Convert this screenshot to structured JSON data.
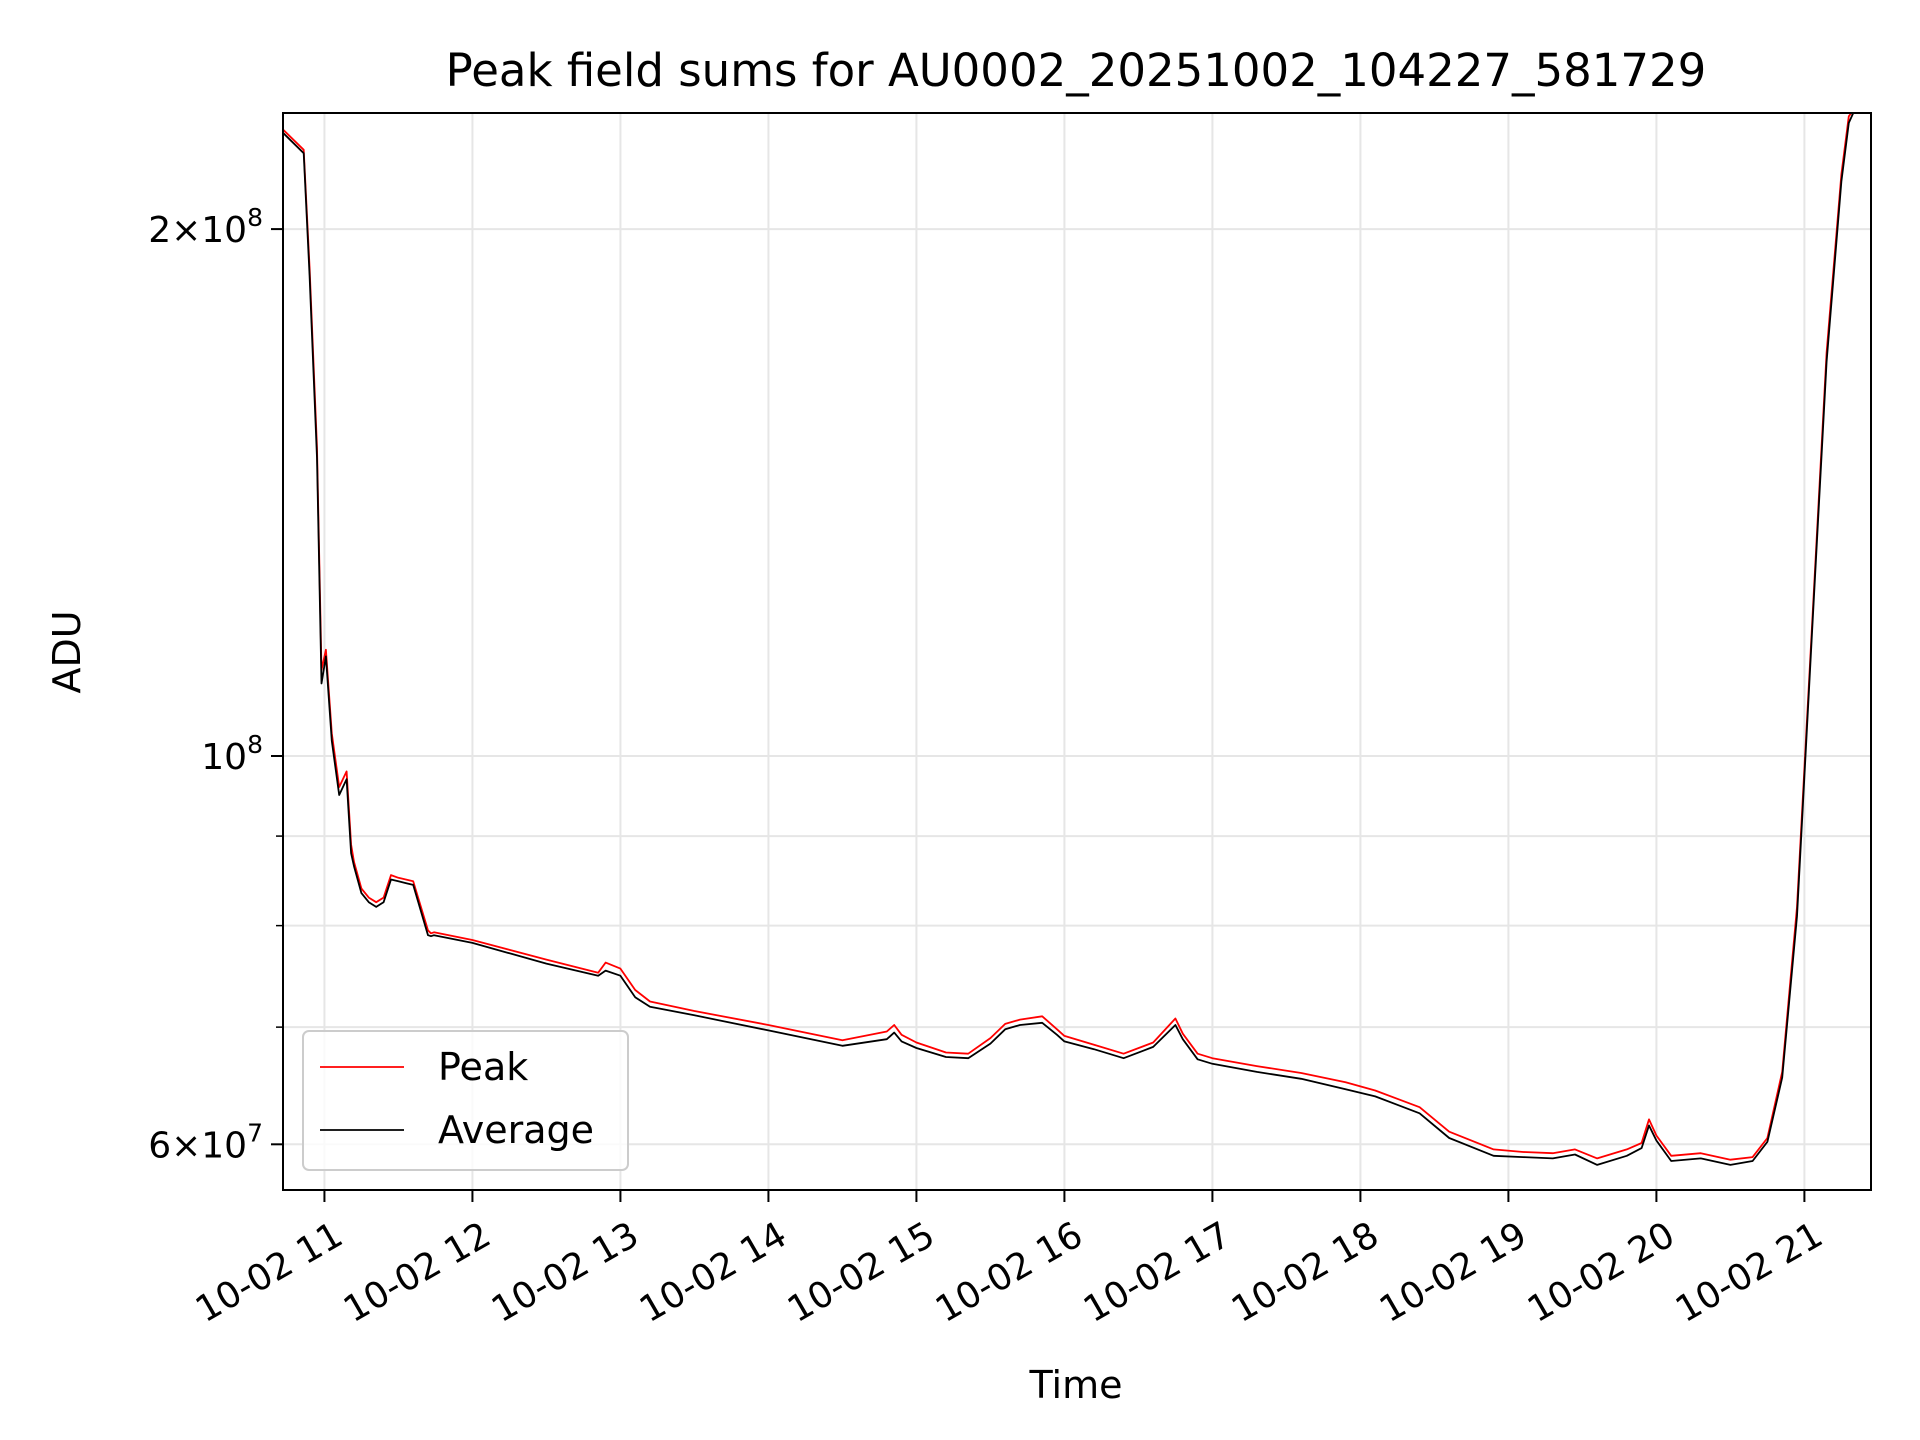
{
  "chart_data": {
    "type": "line",
    "title": "Peak field sums for AU0002_20251002_104227_581729",
    "xlabel": "Time",
    "ylabel": "ADU",
    "y_scale": "log",
    "ylim": [
      56500000,
      233000000
    ],
    "xlim_hours": [
      10.72,
      21.45
    ],
    "grid": true,
    "legend_position": "lower-left",
    "x_ticks": [
      {
        "value": 11,
        "label": "10-02 11"
      },
      {
        "value": 12,
        "label": "10-02 12"
      },
      {
        "value": 13,
        "label": "10-02 13"
      },
      {
        "value": 14,
        "label": "10-02 14"
      },
      {
        "value": 15,
        "label": "10-02 15"
      },
      {
        "value": 16,
        "label": "10-02 16"
      },
      {
        "value": 17,
        "label": "10-02 17"
      },
      {
        "value": 18,
        "label": "10-02 18"
      },
      {
        "value": 19,
        "label": "10-02 19"
      },
      {
        "value": 20,
        "label": "10-02 20"
      },
      {
        "value": 21,
        "label": "10-02 21"
      }
    ],
    "y_major_ticks": [
      {
        "value": 60000000,
        "base": "6×10",
        "exp": "7"
      },
      {
        "value": 100000000,
        "base": "10",
        "exp": "8"
      },
      {
        "value": 200000000,
        "base": "2×10",
        "exp": "8"
      }
    ],
    "y_minor_ticks": [
      70000000,
      80000000,
      90000000
    ],
    "series": [
      {
        "name": "Peak",
        "color": "#ff0000",
        "x": [
          10.72,
          10.86,
          10.9,
          10.95,
          10.98,
          11.01,
          11.05,
          11.1,
          11.15,
          11.18,
          11.2,
          11.25,
          11.3,
          11.35,
          11.4,
          11.45,
          11.5,
          11.55,
          11.6,
          11.7,
          11.72,
          11.74,
          12.0,
          12.5,
          12.85,
          12.9,
          13.0,
          13.1,
          13.2,
          13.5,
          14.0,
          14.5,
          14.8,
          14.85,
          14.9,
          15.0,
          15.2,
          15.35,
          15.5,
          15.6,
          15.7,
          15.85,
          15.95,
          16.0,
          16.2,
          16.4,
          16.6,
          16.75,
          16.8,
          16.9,
          17.0,
          17.3,
          17.6,
          17.9,
          18.1,
          18.4,
          18.6,
          18.9,
          19.1,
          19.3,
          19.45,
          19.6,
          19.8,
          19.9,
          19.95,
          20.0,
          20.1,
          20.3,
          20.5,
          20.65,
          20.75,
          20.85,
          20.95,
          21.05,
          21.15,
          21.25,
          21.3,
          21.35
        ],
        "values": [
          228000000,
          222000000,
          190000000,
          150000000,
          112000000,
          115000000,
          103000000,
          96000000,
          98000000,
          89000000,
          87000000,
          84000000,
          83000000,
          82500000,
          83000000,
          85500000,
          85200000,
          85000000,
          84800000,
          79500000,
          79200000,
          79300000,
          78500000,
          76500000,
          75200000,
          76200000,
          75600000,
          73500000,
          72400000,
          71500000,
          70200000,
          68800000,
          69600000,
          70200000,
          69300000,
          68600000,
          67700000,
          67600000,
          69000000,
          70300000,
          70700000,
          71000000,
          69800000,
          69200000,
          68400000,
          67600000,
          68600000,
          70800000,
          69400000,
          67600000,
          67200000,
          66500000,
          65900000,
          65100000,
          64400000,
          63000000,
          61000000,
          59600000,
          59400000,
          59300000,
          59600000,
          58900000,
          59600000,
          60100000,
          62000000,
          60700000,
          59100000,
          59300000,
          58800000,
          59000000,
          60500000,
          66000000,
          82000000,
          118000000,
          170000000,
          215000000,
          232000000,
          235000000
        ]
      },
      {
        "name": "Average",
        "color": "#000000",
        "x": [
          10.72,
          10.86,
          10.9,
          10.95,
          10.98,
          11.01,
          11.05,
          11.1,
          11.15,
          11.18,
          11.2,
          11.25,
          11.3,
          11.35,
          11.4,
          11.45,
          11.5,
          11.55,
          11.6,
          11.7,
          11.72,
          11.74,
          12.0,
          12.5,
          12.85,
          12.9,
          13.0,
          13.1,
          13.2,
          13.5,
          14.0,
          14.5,
          14.8,
          14.85,
          14.9,
          15.0,
          15.2,
          15.35,
          15.5,
          15.6,
          15.7,
          15.85,
          15.95,
          16.0,
          16.2,
          16.4,
          16.6,
          16.75,
          16.8,
          16.9,
          17.0,
          17.3,
          17.6,
          17.9,
          18.1,
          18.4,
          18.6,
          18.9,
          19.1,
          19.3,
          19.45,
          19.6,
          19.8,
          19.9,
          19.95,
          20.0,
          20.1,
          20.3,
          20.5,
          20.65,
          20.75,
          20.85,
          20.95,
          21.05,
          21.15,
          21.25,
          21.3,
          21.35
        ],
        "values": [
          227000000,
          221000000,
          188000000,
          148000000,
          110000000,
          114000000,
          102000000,
          95000000,
          97000000,
          88000000,
          86500000,
          83500000,
          82500000,
          82000000,
          82500000,
          85000000,
          84800000,
          84600000,
          84400000,
          79000000,
          78900000,
          79000000,
          78200000,
          76100000,
          74900000,
          75400000,
          74900000,
          72800000,
          71900000,
          71100000,
          69700000,
          68300000,
          68900000,
          69500000,
          68700000,
          68100000,
          67300000,
          67200000,
          68500000,
          69800000,
          70200000,
          70400000,
          69300000,
          68700000,
          68000000,
          67200000,
          68200000,
          70200000,
          68900000,
          67100000,
          66700000,
          66000000,
          65400000,
          64500000,
          63900000,
          62500000,
          60500000,
          59100000,
          59000000,
          58900000,
          59200000,
          58400000,
          59100000,
          59700000,
          61500000,
          60300000,
          58700000,
          58900000,
          58400000,
          58700000,
          60200000,
          65500000,
          81000000,
          117000000,
          168000000,
          213000000,
          230000000,
          235000000
        ]
      }
    ]
  }
}
